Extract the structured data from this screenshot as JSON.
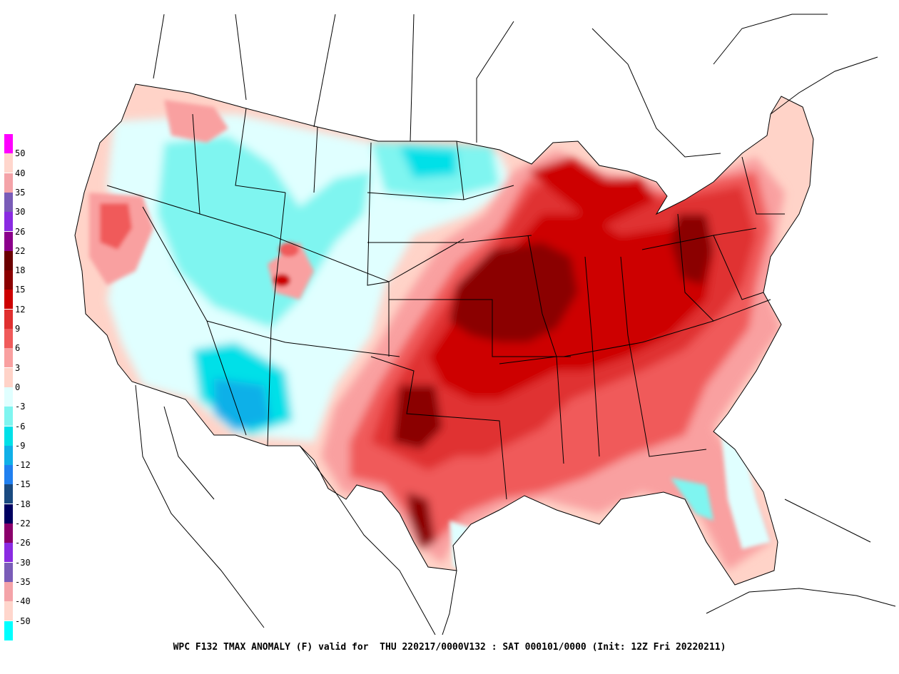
{
  "caption": "WPC F132 TMAX ANOMALY (F) valid for  THU 220217/0000V132 : SAT 000101/0000 (Init: 12Z Fri 20220211)",
  "legend": {
    "colors": [
      "#ff00ff",
      "#ffd6cc",
      "#f4a3a8",
      "#7a5cb8",
      "#8a2be2",
      "#8b008b",
      "#6b0000",
      "#8b0000",
      "#cd0000",
      "#e03030",
      "#f05a5a",
      "#f9a0a0",
      "#ffd3c8",
      "#e0ffff",
      "#7ff5f0",
      "#00e0e8",
      "#10b0e8",
      "#2080f0",
      "#1a4a80",
      "#000060",
      "#8b006b",
      "#8a2be2",
      "#7a5cb8",
      "#f4a3a8",
      "#ffd6cc",
      "#00ffff"
    ],
    "labels": [
      "50",
      "40",
      "35",
      "30",
      "26",
      "22",
      "18",
      "15",
      "12",
      "9",
      "6",
      "3",
      "0",
      "-3",
      "-6",
      "-9",
      "-12",
      "-15",
      "-18",
      "-22",
      "-26",
      "-30",
      "-35",
      "-40",
      "-50"
    ]
  }
}
